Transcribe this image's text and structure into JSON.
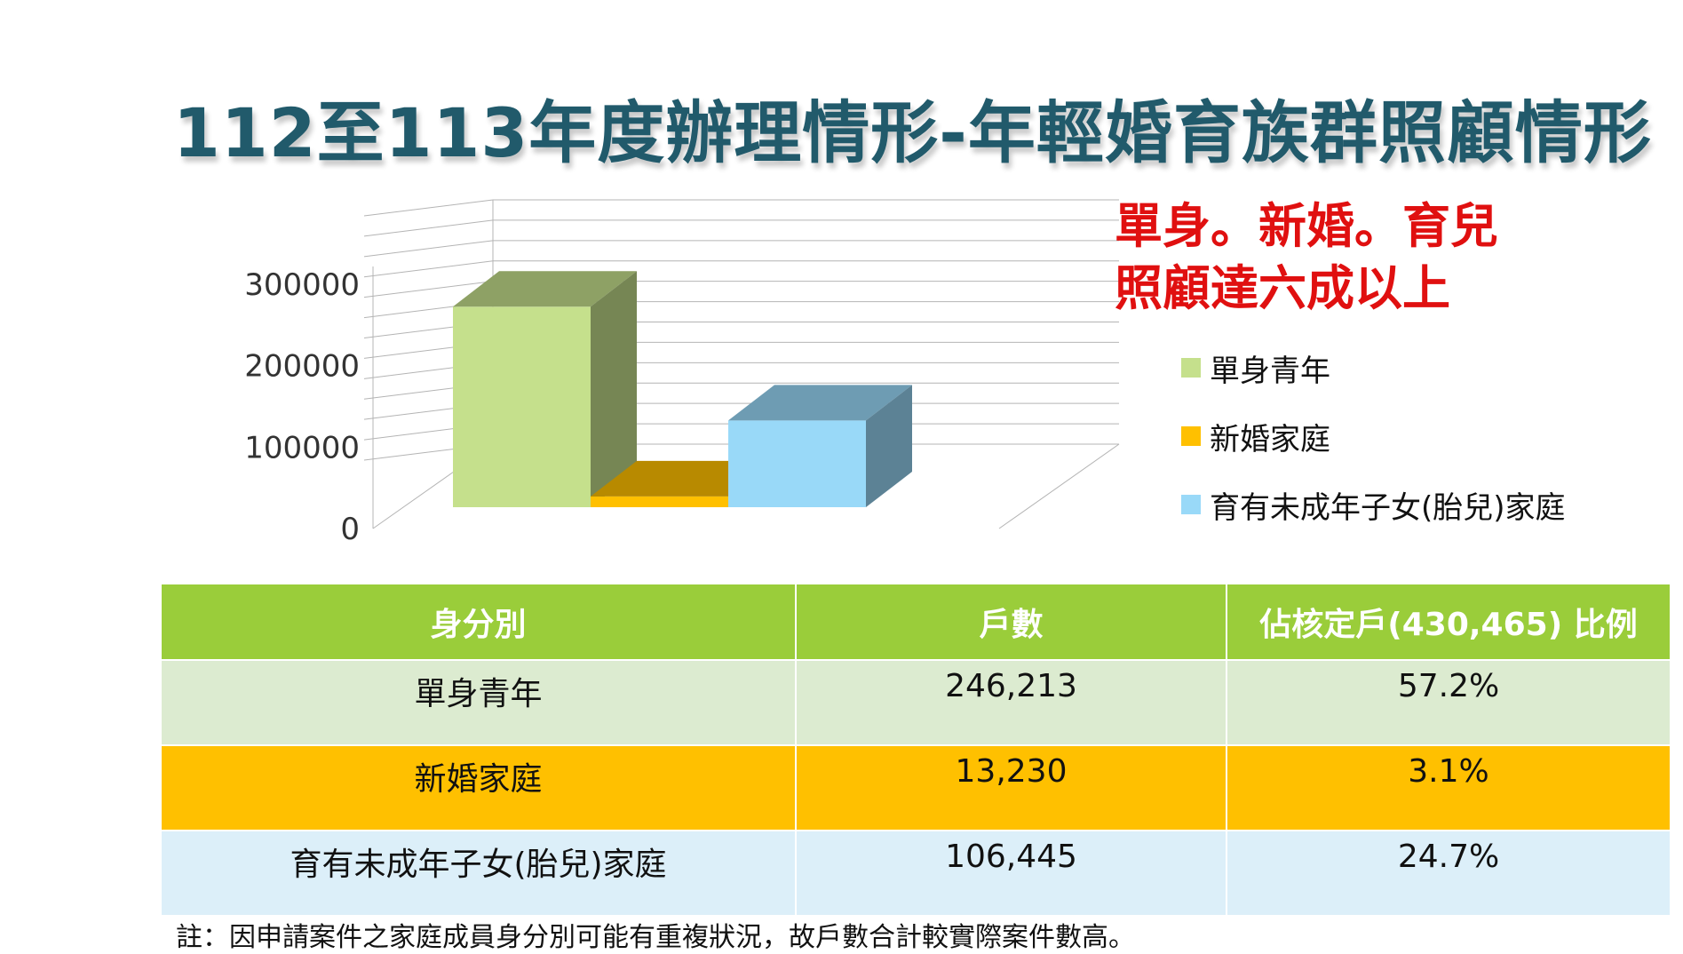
{
  "title": "112至113年度辦理情形-年輕婚育族群照顧情形",
  "callout": {
    "line1": "單身。新婚。育兒",
    "line2": "照顧達六成以上"
  },
  "chart_data": {
    "type": "bar",
    "variant": "3d-column",
    "categories": [
      "單身青年",
      "新婚家庭",
      "育有未成年子女(胎兒)家庭"
    ],
    "values": [
      246213,
      13230,
      106445
    ],
    "colors": [
      "#c5e08c",
      "#ffc000",
      "#99d9f8"
    ],
    "yticks": [
      "0",
      "100000",
      "200000",
      "300000"
    ],
    "ylim": [
      0,
      300000
    ],
    "grid": true,
    "legend": "right",
    "title": "",
    "xlabel": "",
    "ylabel": ""
  },
  "table": {
    "headers": [
      "身分別",
      "戶數",
      "佔核定戶(430,465) 比例"
    ],
    "rows": [
      [
        "單身青年",
        "246,213",
        "57.2%"
      ],
      [
        "新婚家庭",
        "13,230",
        "3.1%"
      ],
      [
        "育有未成年子女(胎兒)家庭",
        "106,445",
        "24.7%"
      ]
    ]
  },
  "note": "註：因申請案件之家庭成員身分別可能有重複狀況，故戶數合計較實際案件數高。"
}
